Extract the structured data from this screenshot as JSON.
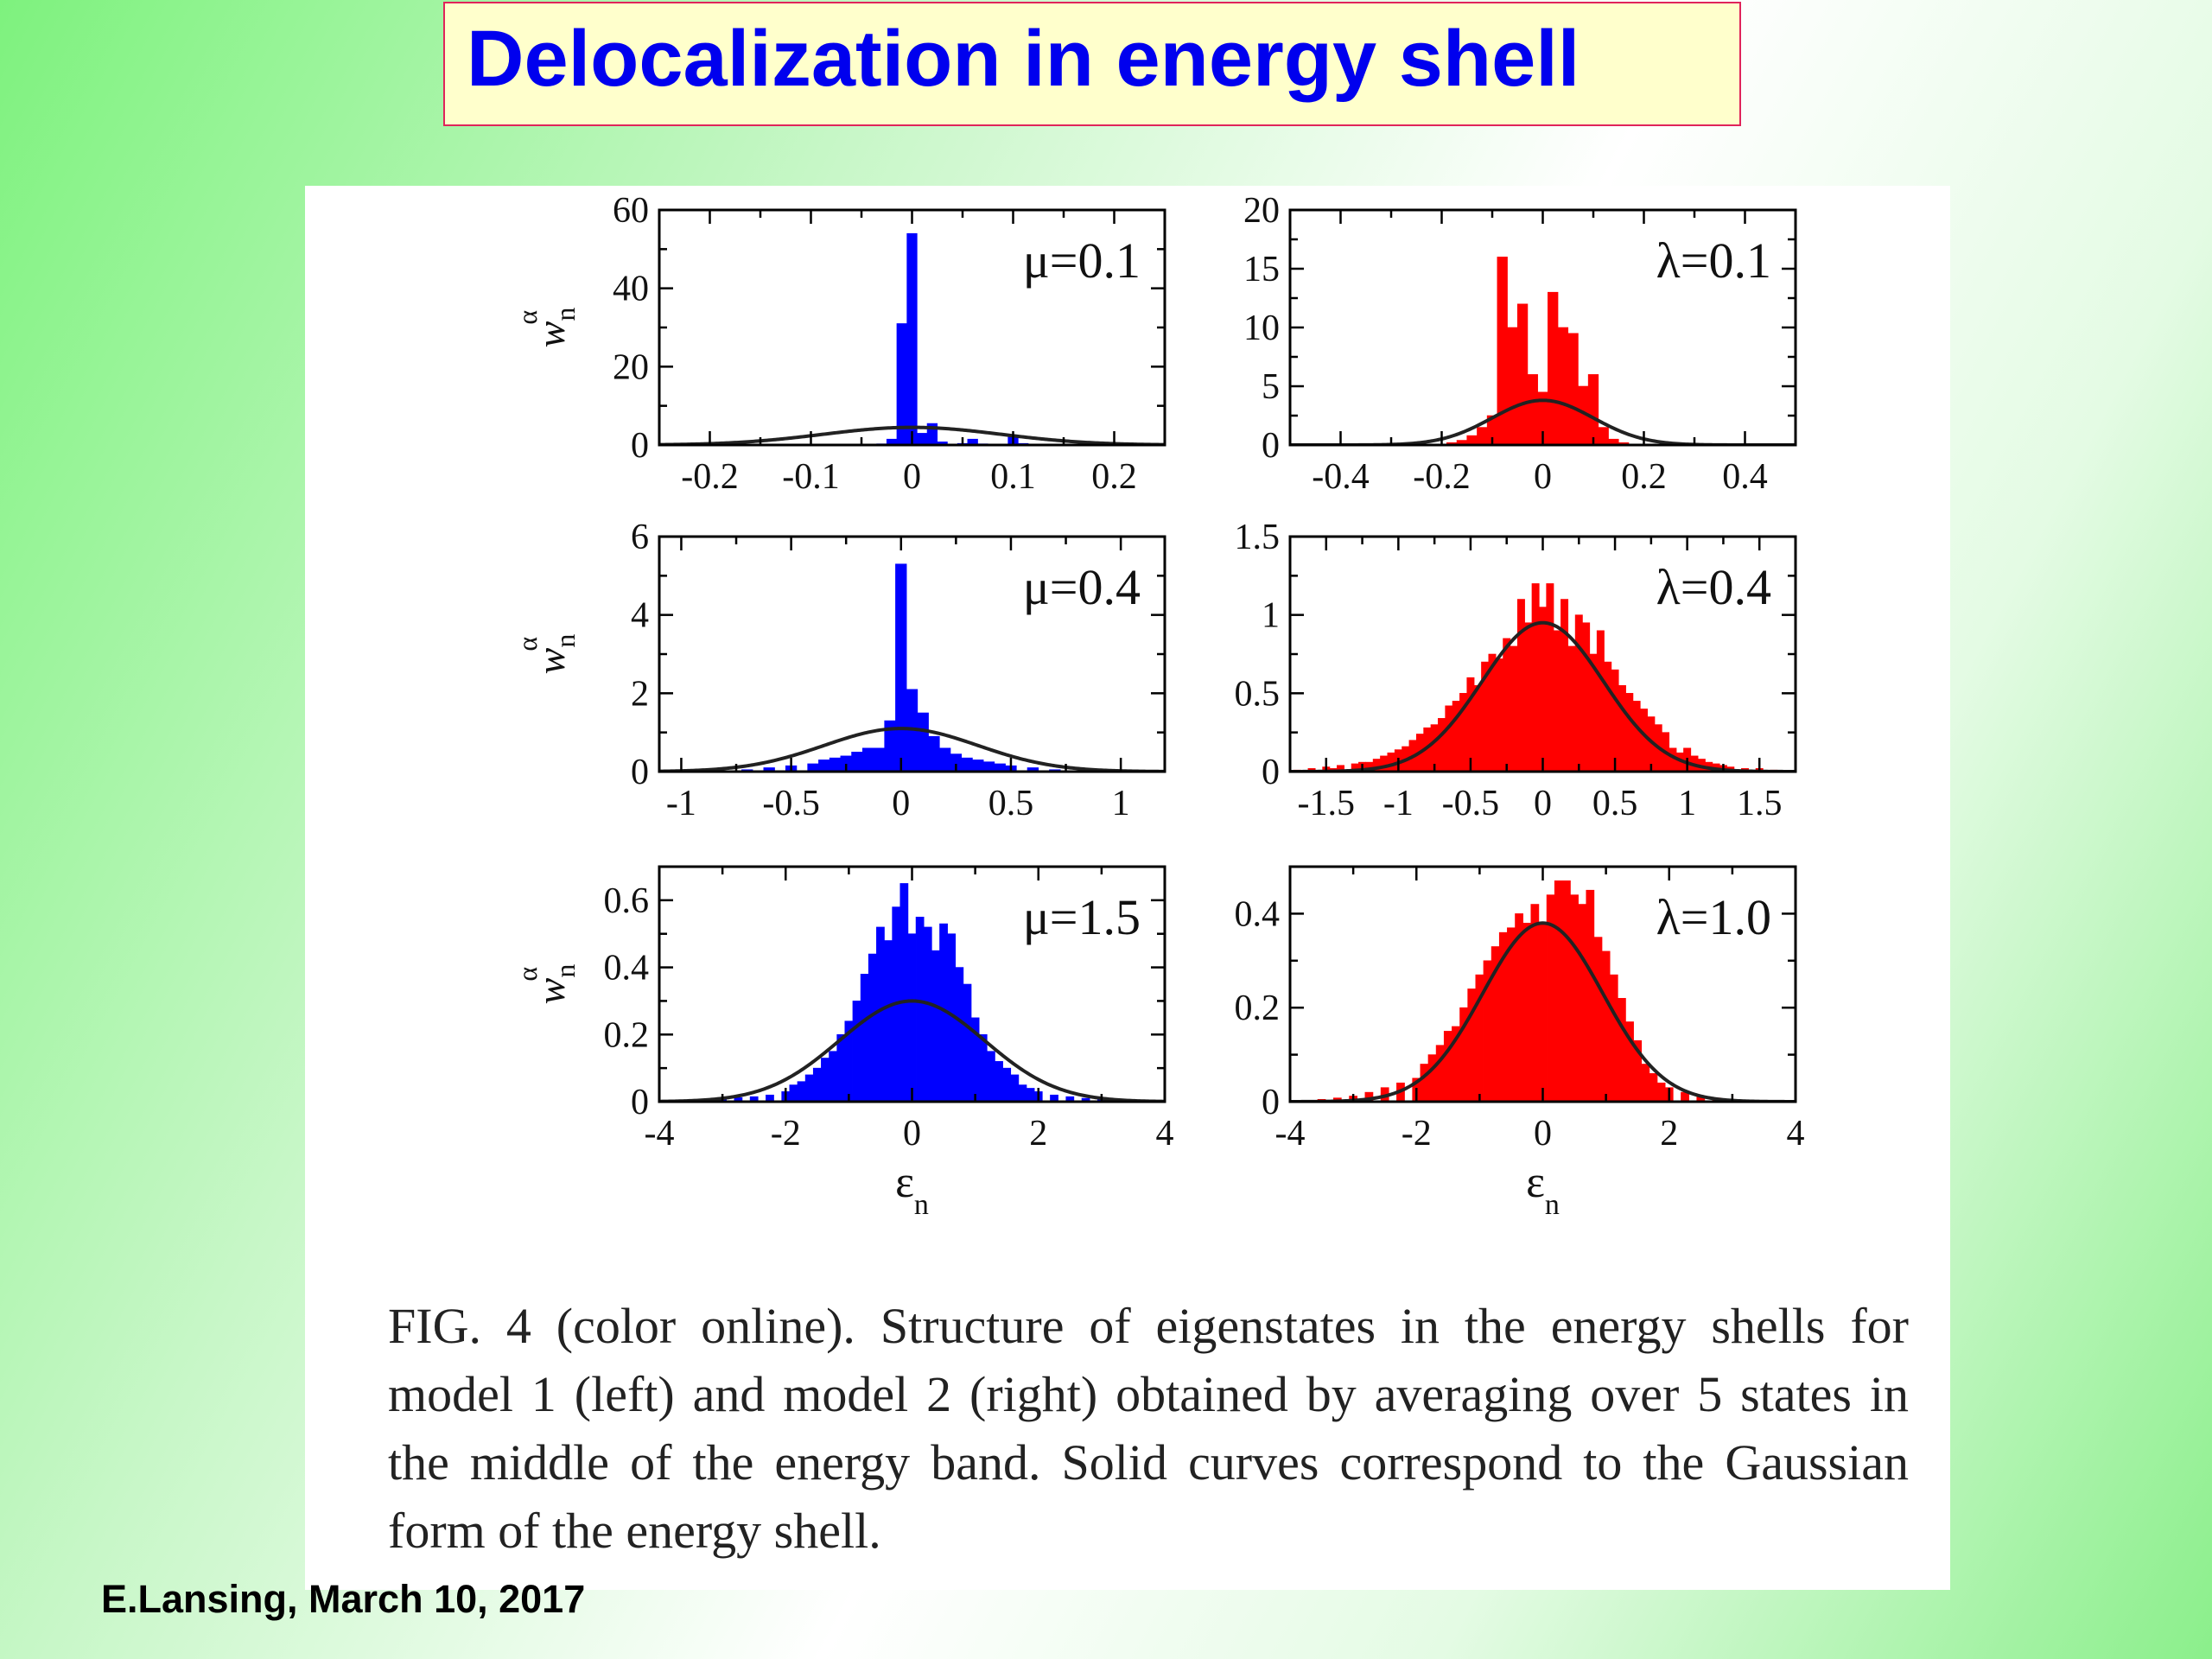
{
  "slide": {
    "title": "Delocalization in energy shell",
    "footer": "E.Lansing, March 10, 2017",
    "caption": "FIG. 4 (color online).   Structure of eigenstates in the energy shells for model 1 (left) and model 2 (right) obtained by averaging over 5 states in the middle of the energy band. Solid curves correspond to the Gaussian form of the energy shell."
  },
  "colors": {
    "left_bars": "#0000ff",
    "right_bars": "#ff0000",
    "curve": "#222222",
    "title_text": "#0000ee",
    "title_bg": "#ffffcc",
    "title_border": "#e0245a"
  },
  "chart_data": [
    {
      "type": "bar",
      "panel": "left-top",
      "annotation": "μ=0.1",
      "ylabel": "w",
      "ylabel_sub": "n",
      "ylabel_sup": "α",
      "xlabel": "",
      "xlim": [
        -0.25,
        0.25
      ],
      "ylim": [
        0,
        60
      ],
      "xticks": [
        -0.2,
        -0.1,
        0,
        0.1,
        0.2
      ],
      "xtick_labels": [
        "-0.2",
        "-0.1",
        "0",
        "0.1",
        "0.2"
      ],
      "yticks": [
        0,
        20,
        40,
        60
      ],
      "ytick_labels": [
        "0",
        "20",
        "40",
        "60"
      ],
      "color": "blue",
      "bin_width": 0.01,
      "bars": [
        [
          -0.03,
          0.3
        ],
        [
          -0.02,
          1.5
        ],
        [
          -0.01,
          31
        ],
        [
          0.0,
          54
        ],
        [
          0.01,
          3
        ],
        [
          0.02,
          5.5
        ],
        [
          0.03,
          0.8
        ],
        [
          0.05,
          0.4
        ],
        [
          0.06,
          1.5
        ],
        [
          0.07,
          0.3
        ],
        [
          0.1,
          2
        ],
        [
          0.11,
          0.4
        ]
      ],
      "gaussian": {
        "amplitude": 4.5,
        "sigma": 0.088
      }
    },
    {
      "type": "bar",
      "panel": "right-top",
      "annotation": "λ=0.1",
      "ylabel": "",
      "xlabel": "",
      "xlim": [
        -0.5,
        0.5
      ],
      "ylim": [
        0,
        20
      ],
      "xticks": [
        -0.4,
        -0.2,
        0,
        0.2,
        0.4
      ],
      "xtick_labels": [
        "-0.4",
        "-0.2",
        "0",
        "0.2",
        "0.4"
      ],
      "yticks": [
        0,
        5,
        10,
        15,
        20
      ],
      "ytick_labels": [
        "0",
        "5",
        "10",
        "15",
        "20"
      ],
      "color": "red",
      "bin_width": 0.02,
      "bars": [
        [
          -0.18,
          0.2
        ],
        [
          -0.16,
          0.4
        ],
        [
          -0.14,
          0.8
        ],
        [
          -0.12,
          1.5
        ],
        [
          -0.1,
          2.5
        ],
        [
          -0.08,
          16
        ],
        [
          -0.06,
          10
        ],
        [
          -0.04,
          12
        ],
        [
          -0.02,
          6
        ],
        [
          0.0,
          4.5
        ],
        [
          0.02,
          13
        ],
        [
          0.04,
          10
        ],
        [
          0.06,
          9.5
        ],
        [
          0.08,
          5
        ],
        [
          0.1,
          6
        ],
        [
          0.12,
          1.5
        ],
        [
          0.14,
          0.5
        ],
        [
          0.16,
          0.2
        ]
      ],
      "gaussian": {
        "amplitude": 3.8,
        "sigma": 0.1
      }
    },
    {
      "type": "bar",
      "panel": "left-middle",
      "annotation": "μ=0.4",
      "ylabel": "w",
      "ylabel_sub": "n",
      "ylabel_sup": "α",
      "xlabel": "",
      "xlim": [
        -1.1,
        1.2
      ],
      "ylim": [
        0,
        6
      ],
      "xticks": [
        -1,
        -0.5,
        0,
        0.5,
        1
      ],
      "xtick_labels": [
        "-1",
        "-0.5",
        "0",
        "0.5",
        "1"
      ],
      "yticks": [
        0,
        2,
        4,
        6
      ],
      "ytick_labels": [
        "0",
        "2",
        "4",
        "6"
      ],
      "color": "blue",
      "bin_width": 0.05,
      "bars": [
        [
          -0.7,
          0.05
        ],
        [
          -0.6,
          0.1
        ],
        [
          -0.5,
          0.15
        ],
        [
          -0.4,
          0.2
        ],
        [
          -0.35,
          0.3
        ],
        [
          -0.3,
          0.35
        ],
        [
          -0.25,
          0.4
        ],
        [
          -0.2,
          0.5
        ],
        [
          -0.15,
          0.6
        ],
        [
          -0.1,
          0.6
        ],
        [
          -0.05,
          1.3
        ],
        [
          0.0,
          5.3
        ],
        [
          0.05,
          2.1
        ],
        [
          0.1,
          1.5
        ],
        [
          0.15,
          0.9
        ],
        [
          0.2,
          0.6
        ],
        [
          0.25,
          0.45
        ],
        [
          0.3,
          0.35
        ],
        [
          0.35,
          0.3
        ],
        [
          0.4,
          0.25
        ],
        [
          0.45,
          0.2
        ],
        [
          0.5,
          0.15
        ],
        [
          0.6,
          0.1
        ],
        [
          0.7,
          0.05
        ]
      ],
      "gaussian": {
        "amplitude": 1.1,
        "sigma": 0.35
      }
    },
    {
      "type": "bar",
      "panel": "right-middle",
      "annotation": "λ=0.4",
      "ylabel": "",
      "xlabel": "",
      "xlim": [
        -1.75,
        1.75
      ],
      "ylim": [
        0,
        1.5
      ],
      "xticks": [
        -1.5,
        -1,
        -0.5,
        0,
        0.5,
        1,
        1.5
      ],
      "xtick_labels": [
        "-1.5",
        "-1",
        "-0.5",
        "0",
        "0.5",
        "1",
        "1.5"
      ],
      "yticks": [
        0,
        0.5,
        1,
        1.5
      ],
      "ytick_labels": [
        "0",
        "0.5",
        "1",
        "1.5"
      ],
      "color": "red",
      "bin_width": 0.05,
      "bars": [
        [
          -1.7,
          0.01
        ],
        [
          -1.6,
          0.02
        ],
        [
          -1.5,
          0.03
        ],
        [
          -1.45,
          0.02
        ],
        [
          -1.4,
          0.04
        ],
        [
          -1.3,
          0.05
        ],
        [
          -1.25,
          0.06
        ],
        [
          -1.2,
          0.06
        ],
        [
          -1.15,
          0.08
        ],
        [
          -1.1,
          0.1
        ],
        [
          -1.05,
          0.12
        ],
        [
          -1.0,
          0.14
        ],
        [
          -0.95,
          0.16
        ],
        [
          -0.9,
          0.2
        ],
        [
          -0.85,
          0.24
        ],
        [
          -0.8,
          0.28
        ],
        [
          -0.75,
          0.3
        ],
        [
          -0.7,
          0.34
        ],
        [
          -0.65,
          0.42
        ],
        [
          -0.6,
          0.45
        ],
        [
          -0.55,
          0.5
        ],
        [
          -0.5,
          0.6
        ],
        [
          -0.45,
          0.55
        ],
        [
          -0.4,
          0.7
        ],
        [
          -0.35,
          0.75
        ],
        [
          -0.3,
          0.72
        ],
        [
          -0.25,
          0.85
        ],
        [
          -0.2,
          0.8
        ],
        [
          -0.15,
          1.1
        ],
        [
          -0.1,
          0.95
        ],
        [
          -0.05,
          1.2
        ],
        [
          0.0,
          1.05
        ],
        [
          0.05,
          1.2
        ],
        [
          0.1,
          0.9
        ],
        [
          0.15,
          1.1
        ],
        [
          0.2,
          0.8
        ],
        [
          0.25,
          1.0
        ],
        [
          0.3,
          0.95
        ],
        [
          0.35,
          0.75
        ],
        [
          0.4,
          0.9
        ],
        [
          0.45,
          0.7
        ],
        [
          0.5,
          0.65
        ],
        [
          0.55,
          0.55
        ],
        [
          0.6,
          0.5
        ],
        [
          0.65,
          0.45
        ],
        [
          0.7,
          0.4
        ],
        [
          0.75,
          0.35
        ],
        [
          0.8,
          0.3
        ],
        [
          0.85,
          0.25
        ],
        [
          0.9,
          0.15
        ],
        [
          0.95,
          0.12
        ],
        [
          1.0,
          0.15
        ],
        [
          1.05,
          0.1
        ],
        [
          1.1,
          0.08
        ],
        [
          1.15,
          0.06
        ],
        [
          1.2,
          0.05
        ],
        [
          1.25,
          0.04
        ],
        [
          1.3,
          0.03
        ],
        [
          1.4,
          0.02
        ],
        [
          1.5,
          0.02
        ],
        [
          1.6,
          0.01
        ]
      ],
      "gaussian": {
        "amplitude": 0.95,
        "sigma": 0.42
      }
    },
    {
      "type": "bar",
      "panel": "left-bottom",
      "annotation": "μ=1.5",
      "ylabel": "w",
      "ylabel_sub": "n",
      "ylabel_sup": "α",
      "xlabel": "ε",
      "xlabel_sub": "n",
      "xlim": [
        -4,
        4
      ],
      "ylim": [
        0,
        0.7
      ],
      "xticks": [
        -4,
        -2,
        0,
        2,
        4
      ],
      "xtick_labels": [
        "-4",
        "-2",
        "0",
        "2",
        "4"
      ],
      "yticks": [
        0,
        0.2,
        0.4,
        0.6
      ],
      "ytick_labels": [
        "0",
        "0.2",
        "0.4",
        "0.6"
      ],
      "color": "blue",
      "bin_width": 0.125,
      "bars": [
        [
          -3.5,
          0.005
        ],
        [
          -3.25,
          0.008
        ],
        [
          -3.0,
          0.01
        ],
        [
          -2.75,
          0.012
        ],
        [
          -2.5,
          0.015
        ],
        [
          -2.25,
          0.02
        ],
        [
          -2.0,
          0.03
        ],
        [
          -1.875,
          0.05
        ],
        [
          -1.75,
          0.06
        ],
        [
          -1.625,
          0.08
        ],
        [
          -1.5,
          0.1
        ],
        [
          -1.375,
          0.13
        ],
        [
          -1.25,
          0.15
        ],
        [
          -1.125,
          0.2
        ],
        [
          -1.0,
          0.24
        ],
        [
          -0.875,
          0.3
        ],
        [
          -0.75,
          0.38
        ],
        [
          -0.625,
          0.44
        ],
        [
          -0.5,
          0.52
        ],
        [
          -0.375,
          0.48
        ],
        [
          -0.25,
          0.58
        ],
        [
          -0.125,
          0.65
        ],
        [
          0.0,
          0.5
        ],
        [
          0.125,
          0.55
        ],
        [
          0.25,
          0.52
        ],
        [
          0.375,
          0.45
        ],
        [
          0.5,
          0.53
        ],
        [
          0.625,
          0.5
        ],
        [
          0.75,
          0.4
        ],
        [
          0.875,
          0.35
        ],
        [
          1.0,
          0.25
        ],
        [
          1.125,
          0.2
        ],
        [
          1.25,
          0.15
        ],
        [
          1.375,
          0.12
        ],
        [
          1.5,
          0.1
        ],
        [
          1.625,
          0.08
        ],
        [
          1.75,
          0.05
        ],
        [
          1.875,
          0.04
        ],
        [
          2.0,
          0.03
        ],
        [
          2.25,
          0.02
        ],
        [
          2.5,
          0.015
        ],
        [
          2.75,
          0.01
        ],
        [
          3.0,
          0.008
        ],
        [
          3.25,
          0.005
        ]
      ],
      "gaussian": {
        "amplitude": 0.3,
        "sigma": 1.15
      }
    },
    {
      "type": "bar",
      "panel": "right-bottom",
      "annotation": "λ=1.0",
      "ylabel": "",
      "xlabel": "ε",
      "xlabel_sub": "n",
      "xlim": [
        -4,
        4
      ],
      "ylim": [
        0,
        0.5
      ],
      "xticks": [
        -4,
        -2,
        0,
        2,
        4
      ],
      "xtick_labels": [
        "-4",
        "-2",
        "0",
        "2",
        "4"
      ],
      "yticks": [
        0,
        0.2,
        0.4
      ],
      "ytick_labels": [
        "0",
        "0.2",
        "0.4"
      ],
      "color": "red",
      "bin_width": 0.125,
      "bars": [
        [
          -3.75,
          0.002
        ],
        [
          -3.5,
          0.005
        ],
        [
          -3.25,
          0.008
        ],
        [
          -3.0,
          0.012
        ],
        [
          -2.75,
          0.02
        ],
        [
          -2.5,
          0.03
        ],
        [
          -2.25,
          0.04
        ],
        [
          -2.0,
          0.05
        ],
        [
          -1.875,
          0.08
        ],
        [
          -1.75,
          0.1
        ],
        [
          -1.625,
          0.12
        ],
        [
          -1.5,
          0.15
        ],
        [
          -1.375,
          0.16
        ],
        [
          -1.25,
          0.2
        ],
        [
          -1.125,
          0.24
        ],
        [
          -1.0,
          0.27
        ],
        [
          -0.875,
          0.3
        ],
        [
          -0.75,
          0.33
        ],
        [
          -0.625,
          0.36
        ],
        [
          -0.5,
          0.37
        ],
        [
          -0.375,
          0.4
        ],
        [
          -0.25,
          0.38
        ],
        [
          -0.125,
          0.42
        ],
        [
          0.0,
          0.38
        ],
        [
          0.125,
          0.44
        ],
        [
          0.25,
          0.47
        ],
        [
          0.375,
          0.47
        ],
        [
          0.5,
          0.44
        ],
        [
          0.625,
          0.42
        ],
        [
          0.75,
          0.45
        ],
        [
          0.875,
          0.35
        ],
        [
          1.0,
          0.32
        ],
        [
          1.125,
          0.27
        ],
        [
          1.25,
          0.22
        ],
        [
          1.375,
          0.17
        ],
        [
          1.5,
          0.13
        ],
        [
          1.625,
          0.08
        ],
        [
          1.75,
          0.06
        ],
        [
          1.875,
          0.04
        ],
        [
          2.0,
          0.03
        ],
        [
          2.25,
          0.02
        ],
        [
          2.5,
          0.012
        ],
        [
          2.75,
          0.008
        ],
        [
          3.0,
          0.005
        ],
        [
          3.25,
          0.003
        ]
      ],
      "gaussian": {
        "amplitude": 0.38,
        "sigma": 0.95
      }
    }
  ]
}
